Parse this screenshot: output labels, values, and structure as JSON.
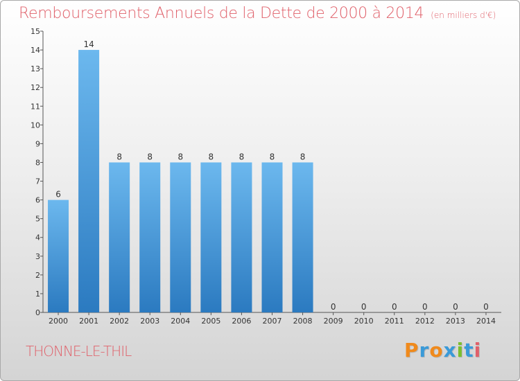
{
  "chart_data": {
    "type": "bar",
    "title": "Remboursements Annuels de la Dette de 2000 à 2014",
    "subtitle": "(en milliers d'€)",
    "categories": [
      "2000",
      "2001",
      "2002",
      "2003",
      "2004",
      "2005",
      "2006",
      "2007",
      "2008",
      "2009",
      "2010",
      "2011",
      "2012",
      "2013",
      "2014"
    ],
    "values": [
      6,
      14,
      8,
      8,
      8,
      8,
      8,
      8,
      8,
      0,
      0,
      0,
      0,
      0,
      0
    ],
    "ylim": [
      0,
      15
    ],
    "yticks": [
      0,
      1,
      2,
      3,
      4,
      5,
      6,
      7,
      8,
      9,
      10,
      11,
      12,
      13,
      14,
      15
    ],
    "xlabel": "",
    "ylabel": "",
    "grid": false,
    "legend": "none",
    "colors": {
      "bar_top": "#6cb8ee",
      "bar_bottom": "#2b7ac0",
      "title": "#e0606a"
    }
  },
  "commune": "THONNE-LE-THIL",
  "logo": {
    "letters": [
      "P",
      "r",
      "o",
      "x",
      "i",
      "t",
      "i"
    ],
    "colors": [
      "#f08a1c",
      "#3a9ad8",
      "#f08a1c",
      "#3a9ad8",
      "#7bbf2e",
      "#3a9ad8",
      "#e0606a"
    ]
  }
}
